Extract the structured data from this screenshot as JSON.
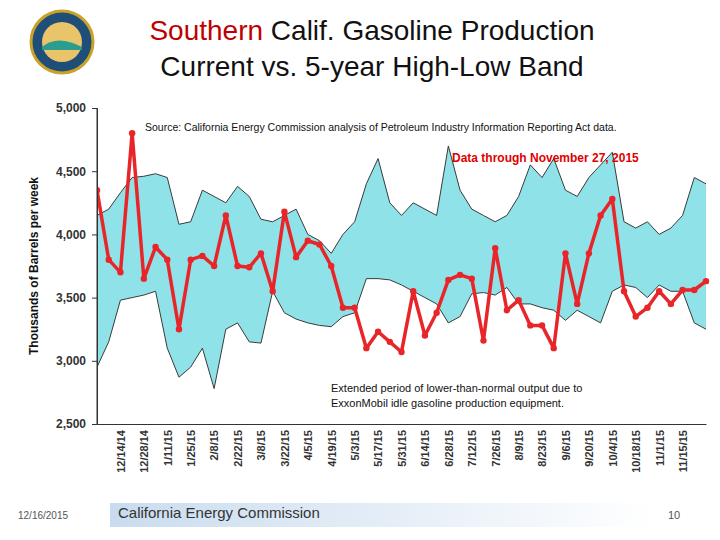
{
  "chart_data": {
    "type": "line",
    "title": "Southern Calif. Gasoline Production",
    "subtitle": "Current vs. 5-year High-Low Band",
    "source": "Source: California Energy Commission analysis of Petroleum Industry Information Reporting Act data.",
    "note": "Data through November 27, 2015",
    "annotation": [
      "Extended period of lower-than-normal output due to",
      "ExxonMobil idle gasoline production equipment."
    ],
    "y_label": "Thousands of Barrels per week",
    "categories": [
      null,
      null,
      "12/14/14",
      null,
      "12/28/14",
      null,
      "1/11/15",
      null,
      "1/25/15",
      null,
      "2/8/15",
      null,
      "2/22/15",
      null,
      "3/8/15",
      null,
      "3/22/15",
      null,
      "4/5/15",
      null,
      "4/19/15",
      null,
      "5/3/15",
      null,
      "5/17/15",
      null,
      "5/31/15",
      null,
      "6/14/15",
      null,
      "6/28/15",
      null,
      "7/12/15",
      null,
      "7/26/15",
      null,
      "8/9/15",
      null,
      "8/23/15",
      null,
      "9/6/15",
      null,
      "9/20/15",
      null,
      "10/4/15",
      null,
      "10/18/15",
      null,
      "11/1/15",
      null,
      "11/15/15",
      null,
      null
    ],
    "series": [
      {
        "color": "#e8262a",
        "marker": "circle",
        "values": [
          4350,
          3800,
          3700,
          4800,
          3650,
          3900,
          3800,
          3250,
          3800,
          3830,
          3750,
          4150,
          3750,
          3740,
          3850,
          3550,
          4180,
          3820,
          3950,
          3920,
          3750,
          3420,
          3420,
          3100,
          3230,
          3150,
          3070,
          3550,
          3200,
          3380,
          3640,
          3680,
          3650,
          3160,
          3890,
          3400,
          3480,
          3280,
          3280,
          3100,
          3850,
          3450,
          3850,
          4150,
          4280,
          3550,
          3350,
          3420,
          3550,
          3450,
          3560,
          3560,
          3630
        ]
      }
    ],
    "band": {
      "color": "#8fe2e8",
      "high": [
        4150,
        4200,
        4330,
        4450,
        4460,
        4480,
        4450,
        4080,
        4100,
        4350,
        4300,
        4250,
        4380,
        4300,
        4120,
        4100,
        4150,
        4200,
        4000,
        3950,
        3850,
        4000,
        4100,
        4400,
        4600,
        4250,
        4150,
        4250,
        4200,
        4150,
        4700,
        4350,
        4200,
        4150,
        4100,
        4150,
        4300,
        4550,
        4450,
        4600,
        4350,
        4300,
        4450,
        4550,
        4650,
        4100,
        4050,
        4100,
        4000,
        4050,
        4150,
        4450,
        4400
      ],
      "low": [
        2950,
        3150,
        3480,
        3500,
        3520,
        3550,
        3100,
        2870,
        2950,
        3100,
        2780,
        3250,
        3300,
        3150,
        3140,
        3550,
        3380,
        3330,
        3300,
        3280,
        3270,
        3350,
        3380,
        3650,
        3650,
        3640,
        3600,
        3550,
        3500,
        3450,
        3300,
        3350,
        3530,
        3540,
        3520,
        3580,
        3450,
        3450,
        3420,
        3400,
        3320,
        3400,
        3350,
        3300,
        3550,
        3600,
        3580,
        3500,
        3600,
        3550,
        3550,
        3300,
        3250
      ]
    },
    "ylim": [
      2500,
      5000
    ],
    "yticks": [
      {
        "value": 2500,
        "label": "2,500"
      },
      {
        "value": 3000,
        "label": "3,000"
      },
      {
        "value": 3500,
        "label": "3,500"
      },
      {
        "value": 4000,
        "label": "4,000"
      },
      {
        "value": 4500,
        "label": "4,500"
      },
      {
        "value": 5000,
        "label": "5,000"
      }
    ],
    "grid": false
  },
  "slide": {
    "date": "12/16/2015",
    "footer": "California Energy Commission",
    "page": 10
  }
}
